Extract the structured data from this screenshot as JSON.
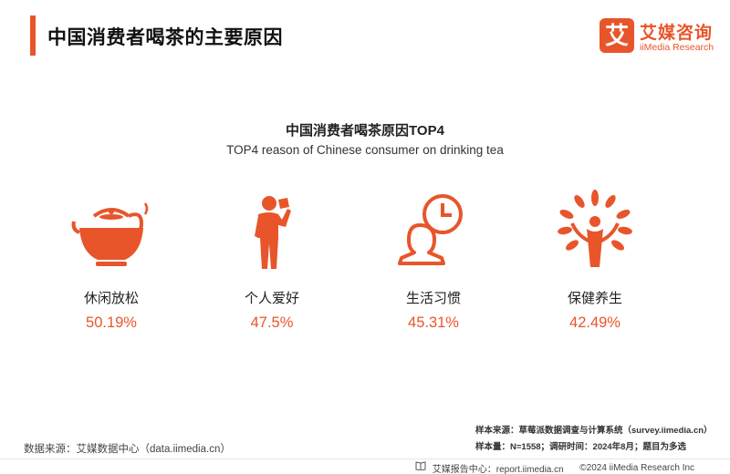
{
  "header": {
    "title": "中国消费者喝茶的主要原因",
    "logo_cn": "艾媒咨询",
    "logo_en": "iiMedia Research",
    "logo_mark_text": "艾"
  },
  "chart_data": {
    "type": "table",
    "title": "中国消费者喝茶原因TOP4",
    "subtitle": "TOP4 reason of Chinese consumer on drinking tea",
    "categories": [
      "休闲放松",
      "个人爱好",
      "生活习惯",
      "保健养生"
    ],
    "values": [
      50.19,
      47.5,
      45.31,
      42.49
    ],
    "value_labels": [
      "50.19%",
      "47.5%",
      "45.31%",
      "42.49%"
    ],
    "icons": [
      "teapot-icon",
      "person-drinking-icon",
      "person-clock-icon",
      "health-tree-icon"
    ],
    "unit": "%"
  },
  "footer": {
    "source": "数据来源：艾媒数据中心（data.iimedia.cn）",
    "sample_source": "样本来源：草莓派数据调查与计算系统（survey.iimedia.cn）",
    "sample_info": "样本量：N=1558；调研时间：2024年8月；题目为多选",
    "report_center": "艾媒报告中心：report.iimedia.cn",
    "copyright": "©2024  iiMedia Research  Inc"
  },
  "colors": {
    "accent": "#e8552b",
    "text": "#222222"
  }
}
